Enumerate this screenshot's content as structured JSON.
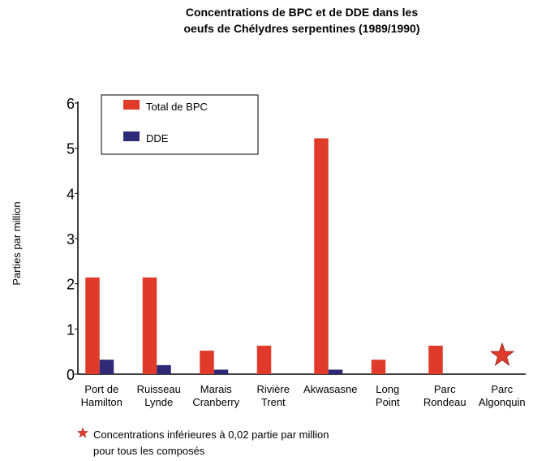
{
  "chart_data": {
    "type": "bar",
    "title": "Concentrations de BPC et de DDE dans les\noeufs de Chélydres serpentines (1989/1990)",
    "y_label": "Parties par million",
    "categories": [
      "Port de\nHamilton",
      "Ruisseau\nLynde",
      "Marais\nCranberry",
      "Rivière\nTrent",
      "Akwasasne",
      "Long\nPoint",
      "Parc\nRondeau",
      "Parc\nAlgonquin"
    ],
    "series": [
      {
        "name": "Total de BPC",
        "color": "#e03a2a",
        "values": [
          2.14,
          2.14,
          0.52,
          0.63,
          5.22,
          0.32,
          0.63,
          null
        ]
      },
      {
        "name": "DDE",
        "color": "#2e2a78",
        "values": [
          0.32,
          0.2,
          0.1,
          null,
          0.1,
          null,
          null,
          null
        ]
      }
    ],
    "ylim": [
      0,
      6
    ],
    "yticks": [
      0,
      1,
      2,
      3,
      4,
      5,
      6
    ],
    "note": "Concentrations inférieures à 0,02 partie par million\npour tous les composés"
  }
}
